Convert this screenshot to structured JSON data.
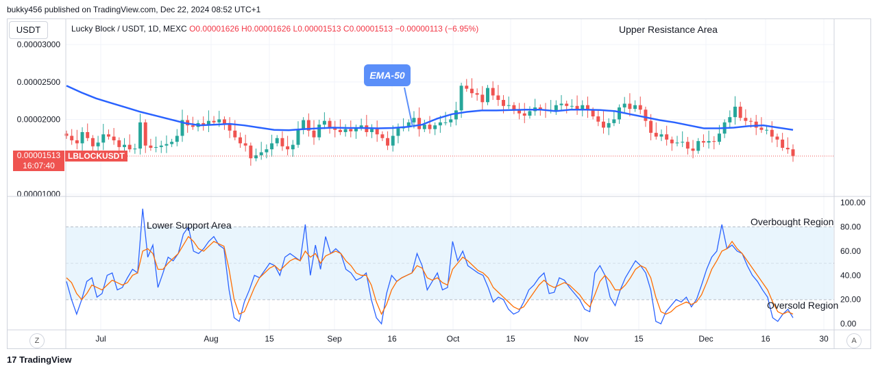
{
  "header": "bukky456 published on TradingView.com, Dec 22, 2024 08:52 UTC+1",
  "currency_button": "USDT",
  "legend": {
    "symbol": "Lucky Block / USDT, 1D, MEXC",
    "ohlc": "O0.00001626  H0.00001626  L0.00001513  C0.00001513  −0.00000113 (−6.95%)"
  },
  "price_tag": {
    "price": "0.00001513",
    "countdown": "16:07:40",
    "symbol": "LBLOCKUSDT"
  },
  "annotations": {
    "upper_resistance": "Upper Resistance Area",
    "lower_support": "Lower Support Area",
    "overbought": "Overbought Region",
    "oversold": "Oversold Region",
    "ema": "EMA-50"
  },
  "left_circle": "Z",
  "right_circle": "A",
  "brand": "TradingView",
  "colors": {
    "up": "#26a69a",
    "down": "#ef5350",
    "ema": "#2962ff",
    "stoch_k": "#2962ff",
    "stoch_d": "#ff6d00",
    "band": "#e3f2fd"
  },
  "chart_data": [
    {
      "type": "candlestick",
      "title": "Lucky Block / USDT, 1D, MEXC",
      "y_ticks": [
        "0.00003000",
        "0.00002500",
        "0.00002000",
        "0.00001000"
      ],
      "x_ticks": [
        "Jul",
        "Aug",
        "15",
        "Sep",
        "16",
        "Oct",
        "15",
        "Nov",
        "15",
        "Dec",
        "16",
        "30"
      ],
      "ylim": [
        9.7e-06,
        3.34e-05
      ],
      "close": [
        17.8,
        17.2,
        16.8,
        18.3,
        17.5,
        16.4,
        16.9,
        18.0,
        17.7,
        17.2,
        16.3,
        16.6,
        16.0,
        16.1,
        19.6,
        16.5,
        16.2,
        16.3,
        16.5,
        16.7,
        17.0,
        17.8,
        19.9,
        19.2,
        19.0,
        19.5,
        19.3,
        19.8,
        19.6,
        20.0,
        19.4,
        18.5,
        17.6,
        16.8,
        16.5,
        14.8,
        15.2,
        15.6,
        16.0,
        16.8,
        17.5,
        16.4,
        16.0,
        16.6,
        18.6,
        19.9,
        18.5,
        17.6,
        19.3,
        19.8,
        18.9,
        18.6,
        18.3,
        18.7,
        18.4,
        18.9,
        19.2,
        18.3,
        18.7,
        18.0,
        17.5,
        16.5,
        17.8,
        18.8,
        19.0,
        19.6,
        20.2,
        18.7,
        19.3,
        18.7,
        19.2,
        19.6,
        19.6,
        20.0,
        21.2,
        24.5,
        24.1,
        23.5,
        23.3,
        22.3,
        24.2,
        23.2,
        22.6,
        21.8,
        21.9,
        21.3,
        20.8,
        20.5,
        21.1,
        21.6,
        21.3,
        21.2,
        21.2,
        21.9,
        22.1,
        21.8,
        21.8,
        21.2,
        21.9,
        21.2,
        20.4,
        19.7,
        18.9,
        19.5,
        20.0,
        21.6,
        22.1,
        21.4,
        21.9,
        21.3,
        19.8,
        18.2,
        17.7,
        18.0,
        17.3,
        16.8,
        16.9,
        17.0,
        16.1,
        15.8,
        17.1,
        16.9,
        17.1,
        17.0,
        18.1,
        19.6,
        20.3,
        21.7,
        20.2,
        19.8,
        19.7,
        18.9,
        18.6,
        18.6,
        17.7,
        17.3,
        16.2,
        16.0,
        15.13
      ],
      "ema50": [
        24.5,
        23.6,
        22.8,
        22.2,
        21.6,
        21.0,
        20.5,
        20.0,
        19.5,
        19.2,
        19.3,
        19.4,
        19.2,
        18.9,
        18.6,
        18.55,
        18.7,
        18.8,
        18.9,
        18.85,
        18.85,
        18.8,
        18.85,
        19.0,
        19.3,
        20.1,
        20.7,
        21.0,
        21.2,
        21.2,
        21.25,
        21.3,
        21.3,
        21.1,
        21.3,
        21.3,
        21.25,
        21.1,
        20.7,
        20.3,
        19.9,
        19.6,
        19.2,
        18.8,
        18.8,
        18.9,
        19.1,
        19.2,
        18.9,
        18.6
      ],
      "ema50_x_note": "ema50 sampled every 3rd day"
    },
    {
      "type": "line",
      "title": "",
      "y_ticks": [
        "100.00",
        "80.00",
        "60.00",
        "40.00",
        "20.00",
        "0.00"
      ],
      "ylim": [
        -5,
        104
      ],
      "band": [
        20,
        80
      ],
      "midline": 50,
      "series": [
        {
          "values": [
            35,
            20,
            8,
            20,
            35,
            38,
            22,
            25,
            40,
            42,
            28,
            30,
            38,
            45,
            42,
            95,
            55,
            65,
            30,
            42,
            55,
            52,
            58,
            74,
            80,
            60,
            58,
            62,
            68,
            72,
            65,
            62,
            28,
            5,
            2,
            18,
            28,
            40,
            38,
            44,
            50,
            48,
            40,
            55,
            58,
            55,
            52,
            82,
            40,
            65,
            45,
            72,
            58,
            62,
            58,
            45,
            42,
            36,
            38,
            42,
            20,
            5,
            0,
            25,
            40,
            35,
            38,
            40,
            42,
            58,
            48,
            28,
            35,
            42,
            28,
            30,
            68,
            52,
            60,
            48,
            45,
            42,
            40,
            30,
            18,
            22,
            20,
            12,
            8,
            10,
            18,
            28,
            32,
            38,
            42,
            25,
            26,
            38,
            36,
            30,
            25,
            20,
            12,
            10,
            42,
            48,
            40,
            22,
            15,
            28,
            38,
            45,
            52,
            48,
            42,
            28,
            2,
            0,
            10,
            15,
            20,
            18,
            22,
            14,
            20,
            32,
            45,
            55,
            60,
            82,
            62,
            65,
            60,
            58,
            48,
            40,
            35,
            28,
            22,
            5,
            2,
            8,
            12,
            5
          ]
        },
        {
          "values": [
            38,
            34,
            25,
            20,
            25,
            32,
            30,
            28,
            32,
            36,
            34,
            32,
            34,
            40,
            42,
            60,
            62,
            58,
            45,
            45,
            50,
            54,
            58,
            65,
            72,
            68,
            62,
            60,
            64,
            68,
            66,
            64,
            45,
            20,
            8,
            10,
            20,
            30,
            38,
            42,
            46,
            48,
            44,
            48,
            52,
            54,
            52,
            60,
            55,
            58,
            50,
            56,
            58,
            60,
            58,
            52,
            48,
            42,
            40,
            40,
            32,
            18,
            8,
            16,
            28,
            35,
            38,
            40,
            42,
            48,
            46,
            38,
            36,
            38,
            34,
            32,
            45,
            50,
            55,
            52,
            48,
            44,
            42,
            38,
            30,
            26,
            22,
            18,
            14,
            12,
            14,
            20,
            26,
            32,
            36,
            32,
            30,
            32,
            34,
            32,
            28,
            24,
            18,
            14,
            24,
            35,
            40,
            35,
            28,
            28,
            32,
            38,
            45,
            48,
            46,
            38,
            22,
            10,
            8,
            10,
            14,
            16,
            18,
            16,
            18,
            24,
            34,
            45,
            52,
            60,
            62,
            68,
            62,
            58,
            52,
            46,
            40,
            34,
            28,
            18,
            10,
            8,
            10,
            8
          ]
        }
      ]
    }
  ]
}
